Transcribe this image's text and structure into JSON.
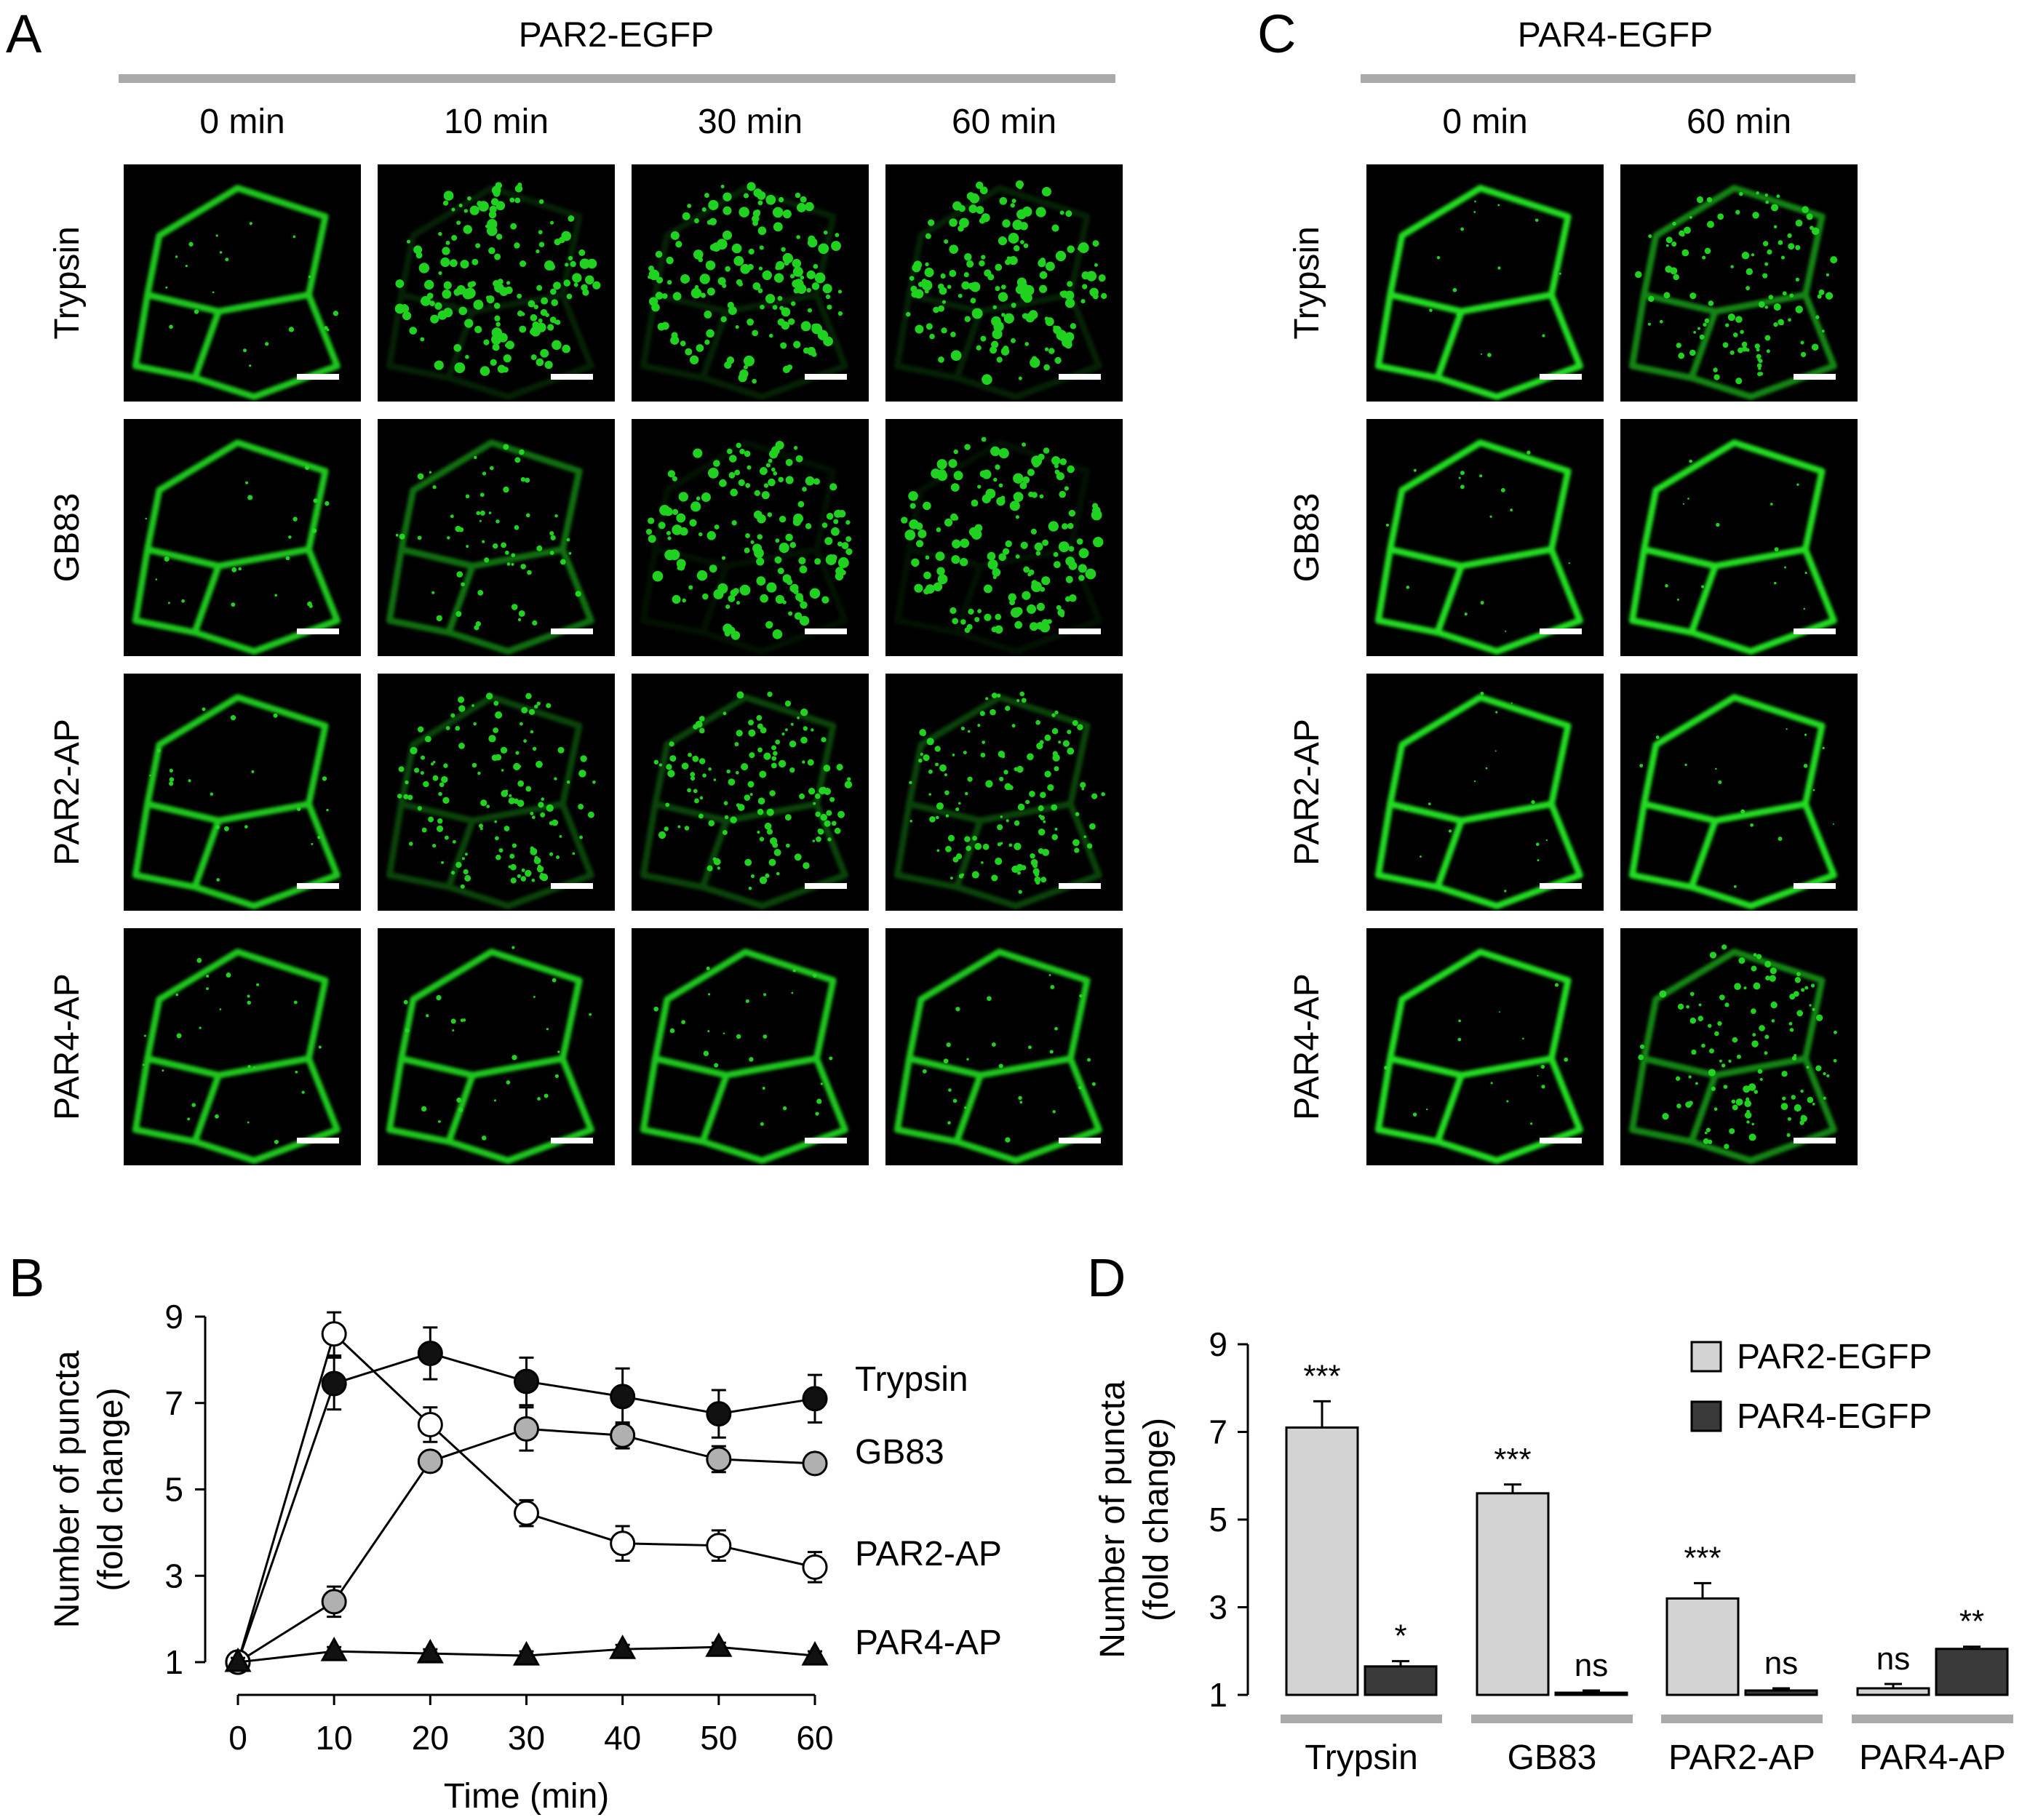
{
  "panel_letters": {
    "a": "A",
    "b": "B",
    "c": "C",
    "d": "D"
  },
  "panel_a": {
    "header": "PAR2-EGFP",
    "columns": [
      "0 min",
      "10 min",
      "30 min",
      "60 min"
    ],
    "rows": [
      "Trypsin",
      "GB83",
      "PAR2-AP",
      "PAR4-AP"
    ]
  },
  "panel_c": {
    "header": "PAR4-EGFP",
    "columns": [
      "0 min",
      "60 min"
    ],
    "rows": [
      "Trypsin",
      "GB83",
      "PAR2-AP",
      "PAR4-AP"
    ]
  },
  "colors": {
    "cell_green": "#22dd22",
    "bar_light": "#d3d3d3",
    "bar_dark": "#3a3a3a",
    "gray_marker": "#b0b0b0",
    "header_rule": "#aaaaaa"
  },
  "chart_data": [
    {
      "type": "line",
      "panel": "B",
      "xlabel": "Time (min)",
      "ylabel": [
        "Number of puncta",
        "(fold change)"
      ],
      "x": [
        0,
        10,
        20,
        30,
        40,
        50,
        60
      ],
      "xticks": [
        "0",
        "10",
        "20",
        "30",
        "40",
        "50",
        "60"
      ],
      "yticks": [
        "1",
        "3",
        "5",
        "7",
        "9"
      ],
      "xlim": [
        0,
        60
      ],
      "ylim": [
        1,
        9
      ],
      "series": [
        {
          "name": "Trypsin",
          "marker": "circle-black",
          "values": [
            1.0,
            7.45,
            8.15,
            7.5,
            7.15,
            6.75,
            7.1
          ],
          "err": [
            0.15,
            0.6,
            0.6,
            0.55,
            0.65,
            0.55,
            0.55
          ]
        },
        {
          "name": "GB83",
          "marker": "circle-gray",
          "values": [
            1.0,
            2.4,
            5.65,
            6.4,
            6.25,
            5.7,
            5.6
          ],
          "err": [
            0.15,
            0.35,
            0.2,
            0.5,
            0.3,
            0.3,
            0.2
          ]
        },
        {
          "name": "PAR2-AP",
          "marker": "circle-white",
          "values": [
            1.0,
            8.6,
            6.5,
            4.45,
            3.75,
            3.7,
            3.2
          ],
          "err": [
            0.15,
            0.5,
            0.4,
            0.3,
            0.4,
            0.35,
            0.35
          ]
        },
        {
          "name": "PAR4-AP",
          "marker": "triangle-black",
          "values": [
            1.0,
            1.25,
            1.2,
            1.15,
            1.3,
            1.35,
            1.15
          ],
          "err": [
            0.1,
            0.1,
            0.1,
            0.1,
            0.1,
            0.1,
            0.1
          ]
        }
      ]
    },
    {
      "type": "bar",
      "panel": "D",
      "ylabel": [
        "Number of puncta",
        "(fold change)"
      ],
      "categories": [
        "Trypsin",
        "GB83",
        "PAR2-AP",
        "PAR4-AP"
      ],
      "yticks": [
        "1",
        "3",
        "5",
        "7",
        "9"
      ],
      "ylim": [
        1,
        9
      ],
      "series": [
        {
          "name": "PAR2-EGFP",
          "values": [
            7.1,
            5.6,
            3.2,
            1.15
          ],
          "err": [
            0.6,
            0.2,
            0.35,
            0.1
          ],
          "sig": [
            "***",
            "***",
            "***",
            "ns"
          ]
        },
        {
          "name": "PAR4-EGFP",
          "values": [
            1.65,
            1.05,
            1.1,
            2.05
          ],
          "err": [
            0.12,
            0.05,
            0.05,
            0.05
          ],
          "sig": [
            "*",
            "ns",
            "ns",
            "**"
          ]
        }
      ]
    }
  ]
}
